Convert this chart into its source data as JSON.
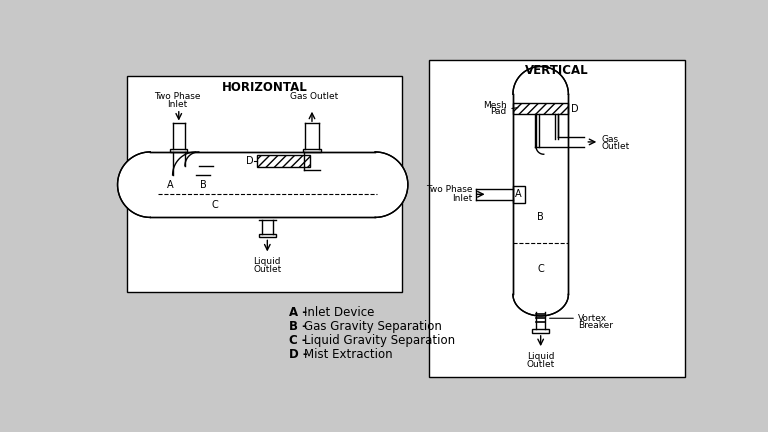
{
  "bg_color": "#c8c8c8",
  "panel_color": "#ffffff",
  "line_color": "#000000",
  "title_horiz": "HORIZONTAL",
  "title_vert": "VERTICAL",
  "legend": [
    [
      "A",
      "Inlet Device"
    ],
    [
      "B",
      "Gas Gravity Separation"
    ],
    [
      "C",
      "Liquid Gravity Separation"
    ],
    [
      "D",
      "Mist Extraction"
    ]
  ],
  "font_size_title": 8.5,
  "font_size_label": 6.5,
  "font_size_legend": 8.5
}
